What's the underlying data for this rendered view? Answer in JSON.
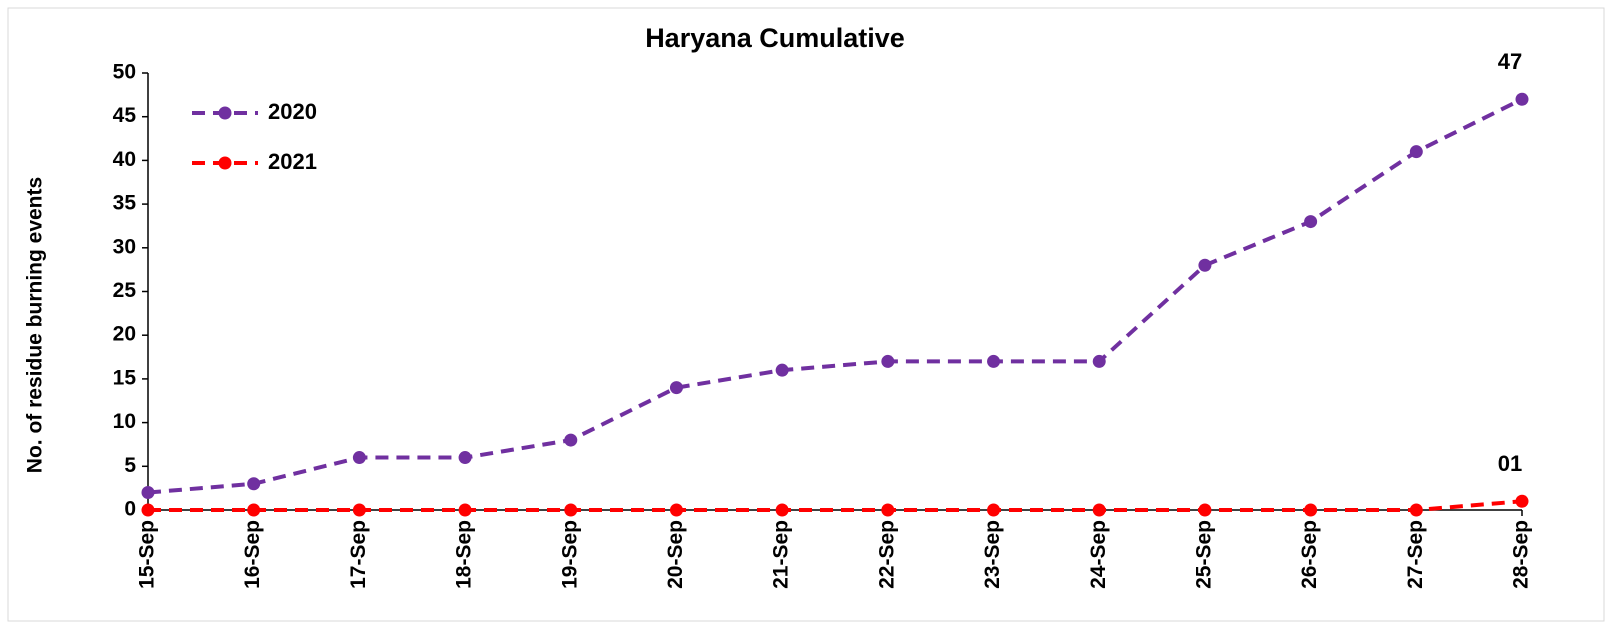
{
  "chart_data": {
    "type": "line",
    "title": "Haryana Cumulative",
    "ylabel": "No. of residue burning events",
    "categories": [
      "15-Sep",
      "16-Sep",
      "17-Sep",
      "18-Sep",
      "19-Sep",
      "20-Sep",
      "21-Sep",
      "22-Sep",
      "23-Sep",
      "24-Sep",
      "25-Sep",
      "26-Sep",
      "27-Sep",
      "28-Sep"
    ],
    "series": [
      {
        "name": "2020",
        "color": "#7030a0",
        "values": [
          2,
          3,
          6,
          6,
          8,
          14,
          16,
          17,
          17,
          17,
          28,
          33,
          41,
          47
        ],
        "value_labels": [
          null,
          null,
          null,
          null,
          null,
          null,
          null,
          null,
          null,
          null,
          null,
          null,
          null,
          "47"
        ]
      },
      {
        "name": "2021",
        "color": "#ff0000",
        "values": [
          0,
          0,
          0,
          0,
          0,
          0,
          0,
          0,
          0,
          0,
          0,
          0,
          0,
          1
        ],
        "value_labels": [
          null,
          null,
          null,
          null,
          null,
          null,
          null,
          null,
          null,
          null,
          null,
          null,
          null,
          "01"
        ]
      }
    ],
    "ylim": [
      0,
      50
    ],
    "yticks": [
      0,
      5,
      10,
      15,
      20,
      25,
      30,
      35,
      40,
      45,
      50
    ],
    "grid": false,
    "legend": "upper left"
  }
}
